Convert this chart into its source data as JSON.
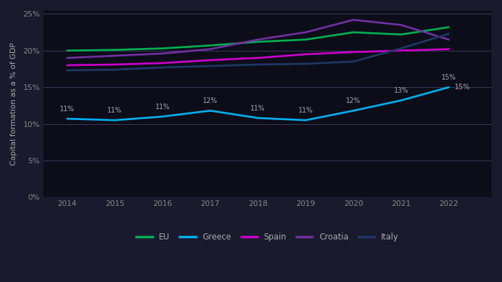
{
  "years": [
    2014,
    2015,
    2016,
    2017,
    2018,
    2019,
    2020,
    2021,
    2022
  ],
  "EU": [
    20.0,
    20.1,
    20.3,
    20.7,
    21.2,
    21.5,
    22.5,
    22.2,
    23.2
  ],
  "Greece": [
    10.7,
    10.5,
    11.0,
    11.8,
    10.8,
    10.5,
    11.8,
    13.2,
    15.0
  ],
  "Spain": [
    18.0,
    18.1,
    18.3,
    18.7,
    19.0,
    19.5,
    19.8,
    20.0,
    20.2
  ],
  "Croatia": [
    19.0,
    19.3,
    19.6,
    20.2,
    21.5,
    22.5,
    24.2,
    23.5,
    21.5
  ],
  "Italy": [
    17.3,
    17.4,
    17.7,
    17.9,
    18.1,
    18.2,
    18.5,
    20.3,
    22.3
  ],
  "colors": {
    "EU": "#00b050",
    "Greece": "#00b0f0",
    "Spain": "#cc00cc",
    "Croatia": "#7030a0",
    "Italy": "#1f3864"
  },
  "greece_anno": {
    "2014": "11%",
    "2015": "11%",
    "2016": "11%",
    "2017": "12%",
    "2018": "11%",
    "2019": "11%",
    "2020": "12%",
    "2021": "13%",
    "2022": "15%"
  },
  "ylabel": "Capital formation as a % of GDP",
  "ylim": [
    0,
    25.5
  ],
  "yticks": [
    0,
    5,
    10,
    15,
    20,
    25
  ],
  "background_color": "#1a1a2e",
  "plot_bg": "#0d0d1a",
  "grid_color": "#3a3a5a",
  "text_color": "#aaaaaa",
  "tick_color": "#888888",
  "legend_labels": [
    "EU",
    "Greece",
    "Spain",
    "Croatia",
    "Italy"
  ]
}
